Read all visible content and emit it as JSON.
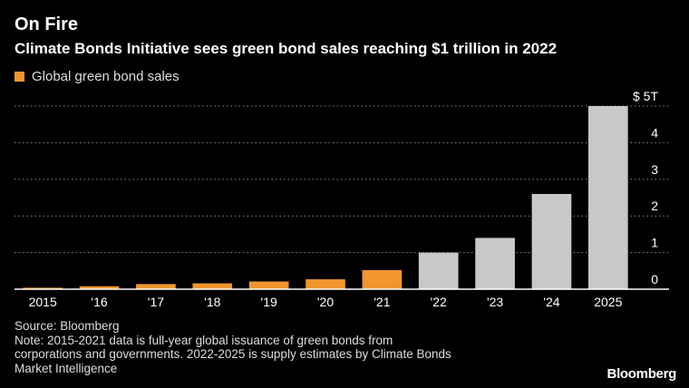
{
  "chart_data": {
    "type": "bar",
    "title": "On Fire",
    "subtitle": "Climate Bonds Initiative sees green bond sales reaching $1 trillion in 2022",
    "categories": [
      "2015",
      "'16",
      "'17",
      "'18",
      "'19",
      "'20",
      "'21",
      "'22",
      "'23",
      "'24",
      "2025"
    ],
    "series": [
      {
        "name": "Global green bond sales",
        "values": [
          0.04,
          0.08,
          0.14,
          0.16,
          0.21,
          0.27,
          0.52,
          1.0,
          1.4,
          2.6,
          5.0
        ]
      }
    ],
    "bar_kind": [
      "actual",
      "actual",
      "actual",
      "actual",
      "actual",
      "actual",
      "actual",
      "estimate",
      "estimate",
      "estimate",
      "estimate"
    ],
    "ylim": [
      0,
      5
    ],
    "yticks": [
      0,
      1,
      2,
      3,
      4,
      5
    ],
    "ytick_labels": [
      "0",
      "1",
      "2",
      "3",
      "4",
      "$ 5T"
    ],
    "xlabel": "",
    "ylabel": "",
    "grid": true,
    "y_axis_position": "right",
    "legend_position": "top-left",
    "colors": {
      "actual": "#f0962c",
      "estimate": "#c8c8c8",
      "grid": "#888888",
      "baseline": "#ffffff"
    }
  },
  "footer": {
    "source": "Source: Bloomberg",
    "note_lines": [
      "Note: 2015-2021 data is full-year global issuance of green bonds from",
      "corporations and governments. 2022-2025 is supply estimates by Climate Bonds",
      "Market Intelligence"
    ],
    "brand": "Bloomberg"
  }
}
